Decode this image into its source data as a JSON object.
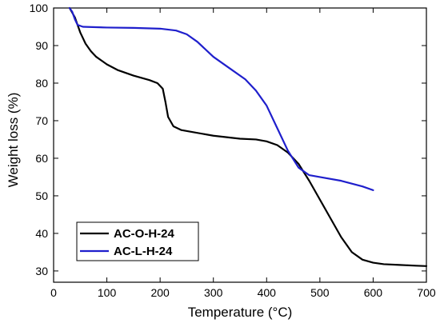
{
  "chart_data": {
    "type": "line",
    "title": "",
    "xlabel": "Temperature (°C)",
    "ylabel": "Weight loss (%)",
    "xlim": [
      0,
      700
    ],
    "ylim": [
      27,
      100
    ],
    "xticks": [
      0,
      100,
      200,
      300,
      400,
      500,
      600,
      700
    ],
    "yticks": [
      30,
      40,
      50,
      60,
      70,
      80,
      90,
      100
    ],
    "grid": false,
    "legend_position": "bottom-left",
    "series": [
      {
        "name": "AC-O-H-24",
        "color": "#000000",
        "x": [
          30,
          40,
          50,
          60,
          70,
          80,
          100,
          120,
          150,
          180,
          195,
          205,
          210,
          215,
          225,
          240,
          260,
          300,
          350,
          380,
          400,
          420,
          440,
          460,
          480,
          500,
          520,
          540,
          560,
          580,
          600,
          620,
          650,
          680,
          700
        ],
        "y": [
          100,
          97.5,
          93.5,
          90.5,
          88.5,
          87,
          85,
          83.5,
          82,
          80.8,
          80,
          78.5,
          75,
          71,
          68.5,
          67.5,
          67,
          66,
          65.2,
          65,
          64.5,
          63.5,
          61.5,
          58.5,
          54,
          49,
          44,
          39,
          35,
          33,
          32.2,
          31.8,
          31.6,
          31.4,
          31.3
        ]
      },
      {
        "name": "AC-L-H-24",
        "color": "#1f1fcc",
        "x": [
          30,
          35,
          40,
          45,
          55,
          100,
          150,
          200,
          230,
          250,
          270,
          300,
          330,
          360,
          380,
          400,
          420,
          440,
          460,
          480,
          500,
          540,
          580,
          600
        ],
        "y": [
          100,
          99,
          97,
          95.5,
          95,
          94.8,
          94.7,
          94.5,
          94,
          93,
          91,
          87,
          84,
          81,
          78,
          74,
          68,
          62,
          57.5,
          55.5,
          55,
          54,
          52.5,
          51.5
        ]
      }
    ]
  }
}
